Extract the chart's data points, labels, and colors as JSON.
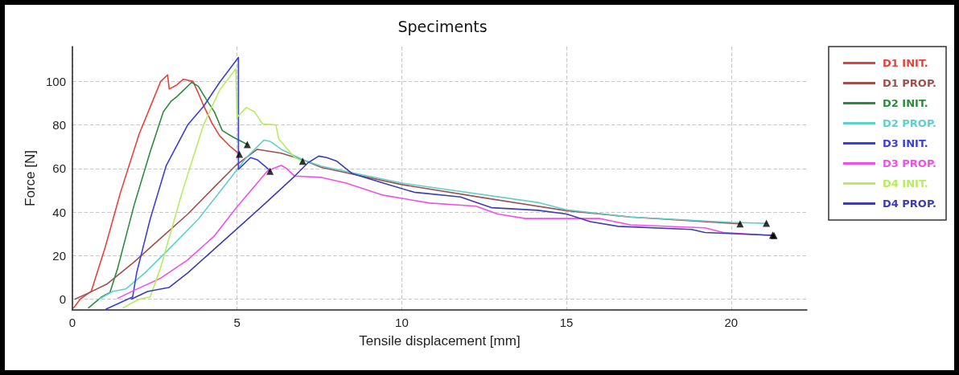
{
  "chart_data": {
    "type": "line",
    "title": "Speciments",
    "xlabel": "Tensile displacement [mm]",
    "ylabel": "Force [N]",
    "xlim": [
      0,
      22.3
    ],
    "xticks": [
      0,
      5,
      10,
      15,
      20
    ],
    "ylim": [
      -5,
      116
    ],
    "yticks": [
      0,
      20,
      40,
      60,
      80,
      100
    ],
    "grid": true,
    "legend": "right",
    "marker": "none",
    "line_style": "solid",
    "series": [
      {
        "name": "D1 INIT.",
        "color": "#e8413c",
        "x": [
          0.04,
          0.24,
          0.57,
          0.98,
          1.46,
          2.03,
          2.68,
          2.89,
          2.94,
          3.17,
          3.37,
          3.66,
          3.82,
          3.98,
          4.23,
          4.47,
          4.8,
          5.04,
          5.07
        ],
        "values": [
          -4,
          0,
          3.5,
          23,
          49,
          76,
          100,
          103,
          96.5,
          98.4,
          101,
          100,
          94.7,
          89,
          81,
          75,
          70,
          67,
          66.6
        ]
      },
      {
        "name": "D1 PROP.",
        "color": "#a0504c",
        "x": [
          0.08,
          0.49,
          1.06,
          1.87,
          2.68,
          3.5,
          4.31,
          4.96,
          5.61,
          6.34,
          7.0,
          7.56,
          10.0,
          12.5,
          15.0,
          16.94,
          20.04,
          20.27
        ],
        "values": [
          0,
          2.8,
          7,
          17,
          28,
          39,
          51.5,
          61.4,
          68.8,
          67,
          64,
          60.5,
          52.6,
          46.5,
          40.6,
          37.7,
          34.8,
          34.6
        ]
      },
      {
        "name": "D2 INIT.",
        "color": "#2e8b3e",
        "x": [
          0.49,
          0.89,
          1.14,
          1.38,
          1.87,
          2.36,
          2.76,
          3.0,
          3.17,
          3.41,
          3.62,
          3.82,
          4.07,
          4.31,
          4.55,
          4.88,
          5.28,
          5.31
        ],
        "values": [
          -4,
          1,
          3,
          14.5,
          43,
          67.6,
          86,
          91,
          93,
          96.5,
          99.6,
          97.8,
          91.6,
          86,
          77.4,
          74.4,
          71.3,
          71
        ]
      },
      {
        "name": "D2 PROP.",
        "color": "#5fd0cc",
        "x": [
          0.81,
          1.22,
          1.63,
          2.2,
          3.0,
          3.82,
          4.72,
          5.28,
          5.81,
          6.0,
          6.34,
          7.0,
          7.56,
          10.0,
          14.13,
          15.0,
          16.94,
          20.04,
          21.07
        ],
        "values": [
          0,
          3.5,
          4.7,
          12,
          24,
          36.7,
          54,
          65,
          73,
          72.5,
          68.8,
          64,
          61,
          53.3,
          44.4,
          41,
          37.7,
          35.2,
          34.8
        ]
      },
      {
        "name": "D3 INIT.",
        "color": "#3a3ee0",
        "x": [
          1.02,
          1.3,
          1.83,
          1.95,
          2.36,
          2.85,
          3.5,
          3.98,
          4.47,
          5.04,
          5.04,
          5.41,
          5.61,
          5.93,
          6.0
        ],
        "values": [
          -4.6,
          -2.7,
          1,
          12,
          36.7,
          61.4,
          80,
          88.5,
          99.6,
          111,
          59.6,
          65,
          64,
          60,
          58.7
        ]
      },
      {
        "name": "D3 PROP.",
        "color": "#f050e8",
        "x": [
          1.38,
          1.87,
          2.68,
          3.5,
          4.31,
          4.96,
          5.93,
          6.34,
          6.5,
          6.75,
          7.56,
          8.31,
          9.44,
          10.85,
          12.25,
          12.91,
          13.75,
          14.97,
          16.0,
          16.94,
          19.2,
          19.76,
          21.07,
          21.26
        ],
        "values": [
          0.4,
          4,
          9.6,
          18,
          29,
          41.7,
          59,
          61.4,
          60,
          56.5,
          55.9,
          53.3,
          47.7,
          44.1,
          42.7,
          39.1,
          37,
          37,
          37,
          34.1,
          32.7,
          30.6,
          29.4,
          29.4
        ]
      },
      {
        "name": "D4 INIT.",
        "color": "#b8ec60",
        "x": [
          1.54,
          2.03,
          2.36,
          2.68,
          3.33,
          3.98,
          4.47,
          4.96,
          5.0,
          5.28,
          5.53,
          5.77,
          6.18,
          6.26,
          6.75,
          6.99
        ],
        "values": [
          -4,
          0,
          1,
          14.5,
          49,
          80,
          96,
          105.8,
          83.6,
          88,
          86,
          80.5,
          80,
          73.7,
          65,
          63.3
        ]
      },
      {
        "name": "D4 PROP.",
        "color": "#3c3cb4",
        "x": [
          1.79,
          2.28,
          2.93,
          3.5,
          4.31,
          5.12,
          5.93,
          6.75,
          7.15,
          7.48,
          7.72,
          8.03,
          8.5,
          9.44,
          10.37,
          11.78,
          12.72,
          14.13,
          15.0,
          15.72,
          16.57,
          18.8,
          19.2,
          21.07,
          21.3
        ],
        "values": [
          0,
          3.5,
          5.3,
          12,
          23,
          34,
          45,
          56.5,
          62.6,
          65.7,
          65,
          63.3,
          57.6,
          53.3,
          49.1,
          46.9,
          42,
          40.8,
          39.1,
          35.6,
          33.4,
          32,
          30.6,
          29.4,
          29.2
        ]
      },
      {
        "type": "scatter",
        "marker": "triangle",
        "color": "#000000",
        "x": [
          5.07,
          5.31,
          6.0,
          6.99,
          20.27,
          21.07,
          21.26,
          21.3
        ],
        "values": [
          66.6,
          71,
          58.7,
          63.3,
          34.6,
          34.8,
          29.4,
          29.2
        ]
      }
    ]
  }
}
